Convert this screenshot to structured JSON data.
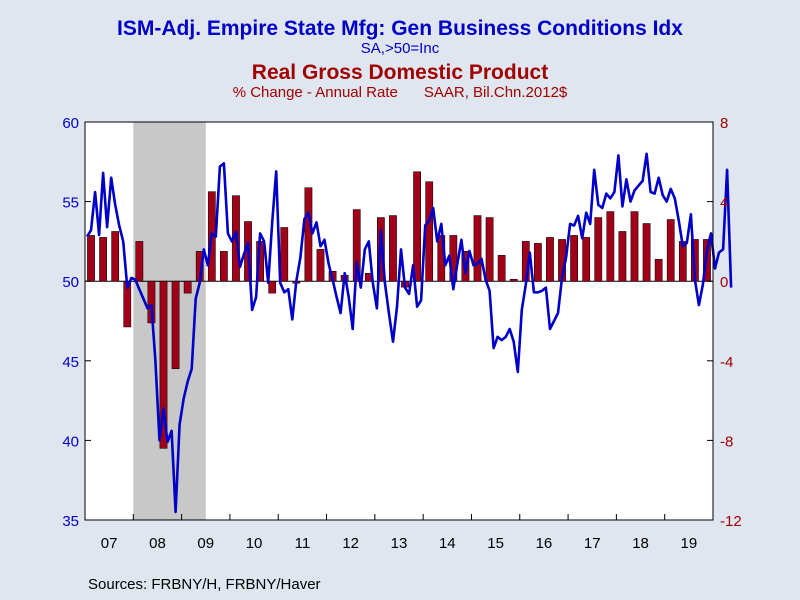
{
  "colors": {
    "blue": "#0000c8",
    "red": "#a00000",
    "bar_fill": "#a00018",
    "recession": "#c8c8c8",
    "plot_bg": "#ffffff",
    "page_bg": "#dfe6ef"
  },
  "header": {
    "title": "ISM-Adj. Empire State Mfg: Gen Business Conditions Idx",
    "title_subtitle": "SA,>50=Inc",
    "title2": "Real Gross Domestic Product",
    "title2_subtitle_left": "% Change - Annual Rate",
    "title2_subtitle_right": "SAAR, Bil.Chn.2012$"
  },
  "footer": {
    "source": "Sources:  FRBNY/H, FRBNY/Haver"
  },
  "chart_data": {
    "type": "bar+line",
    "x_labels": [
      "07",
      "08",
      "09",
      "10",
      "11",
      "12",
      "13",
      "14",
      "15",
      "16",
      "17",
      "18",
      "19"
    ],
    "x_range": [
      2007.0,
      2020.0
    ],
    "left_axis": {
      "range": [
        35,
        60
      ],
      "ticks": [
        "35",
        "40",
        "45",
        "50",
        "55",
        "60"
      ]
    },
    "right_axis": {
      "range": [
        -12,
        8
      ],
      "ticks": [
        "-12",
        "-8",
        "-4",
        "0",
        "4",
        "8"
      ]
    },
    "recession": {
      "start": "2007-12",
      "end": "2009-06",
      "range": [
        2008.0,
        2009.5
      ]
    },
    "series": [
      {
        "name": "ISM-Adj. Empire State Mfg: Gen Business Conditions Idx",
        "kind": "line",
        "axis": "left",
        "start": "2007-01",
        "frequency": "monthly",
        "values": [
          52.8,
          53.2,
          55.6,
          52.9,
          56.8,
          53.4,
          56.5,
          54.8,
          53.5,
          52.5,
          49.6,
          50.2,
          50.1,
          49.5,
          48.9,
          48.3,
          48.5,
          45.0,
          40.0,
          42.0,
          39.9,
          40.6,
          35.5,
          41.0,
          42.6,
          43.7,
          44.5,
          48.9,
          49.9,
          52.0,
          51.0,
          53.0,
          52.8,
          57.2,
          57.4,
          53.0,
          52.5,
          53.1,
          50.9,
          51.7,
          52.4,
          48.2,
          49.0,
          53.0,
          52.5,
          49.9,
          53.7,
          56.9,
          49.9,
          49.3,
          49.5,
          47.6,
          50.0,
          51.5,
          53.9,
          54.3,
          53.0,
          53.7,
          52.2,
          52.6,
          51.1,
          50.1,
          49.0,
          48.0,
          50.5,
          49.0,
          47.0,
          51.2,
          49.6,
          52.0,
          52.5,
          49.9,
          48.3,
          53.2,
          49.9,
          48.0,
          46.2,
          48.4,
          52.0,
          49.6,
          49.2,
          51.0,
          48.4,
          48.8,
          53.5,
          53.8,
          54.6,
          52.5,
          53.6,
          51.0,
          51.6,
          49.5,
          51.1,
          52.6,
          50.5,
          51.9,
          51.0,
          51.1,
          51.4,
          50.1,
          49.4,
          45.8,
          46.5,
          46.3,
          46.5,
          47.0,
          46.2,
          44.3,
          48.2,
          49.8,
          51.8,
          49.3,
          49.3,
          49.4,
          49.6,
          47.0,
          47.5,
          48.0,
          50.2,
          51.5,
          53.6,
          53.5,
          54.1,
          52.7,
          54.3,
          53.6,
          57.0,
          54.8,
          54.6,
          55.5,
          55.2,
          55.6,
          57.9,
          54.7,
          56.4,
          55.0,
          55.7,
          56.0,
          56.3,
          58.0,
          55.6,
          55.5,
          56.5,
          55.4,
          55.0,
          55.8,
          55.2,
          53.8,
          52.2,
          52.4,
          54.2,
          50.1,
          48.5,
          49.8,
          52.0,
          53.0,
          50.8,
          51.8,
          52.0,
          57.0,
          49.6
        ]
      },
      {
        "name": "Real Gross Domestic Product",
        "kind": "bar",
        "axis": "right",
        "start": "2007-Q1",
        "frequency": "quarterly",
        "values": [
          2.3,
          2.2,
          2.5,
          -2.3,
          2.0,
          -2.1,
          -8.4,
          -4.4,
          -0.6,
          1.5,
          4.5,
          1.5,
          4.3,
          3.0,
          2.0,
          -0.6,
          2.7,
          -0.1,
          4.7,
          1.6,
          0.5,
          0.3,
          3.6,
          0.4,
          3.2,
          3.3,
          -0.3,
          5.5,
          5.0,
          2.3,
          2.3,
          1.5,
          3.3,
          3.2,
          1.3,
          0.1,
          2.0,
          1.9,
          2.2,
          2.1,
          2.3,
          2.2,
          3.2,
          3.5,
          2.5,
          3.5,
          2.9,
          1.1,
          3.1,
          2.0,
          2.1,
          2.1
        ]
      }
    ],
    "grid": false
  }
}
